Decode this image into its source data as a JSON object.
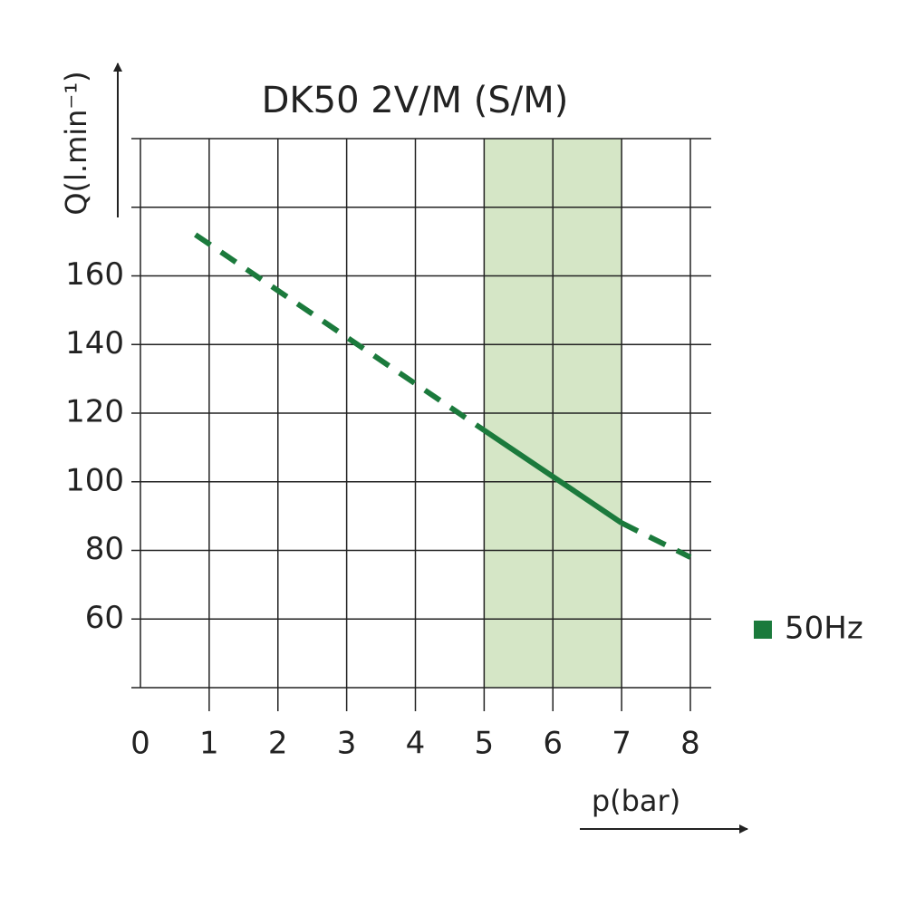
{
  "chart_data": {
    "type": "line",
    "title": "DK50 2V/M (S/M)",
    "x_label": "p(bar)",
    "y_label": "Q(l.min⁻¹)",
    "xlim": [
      0,
      8
    ],
    "xticks": [
      0,
      1,
      2,
      3,
      4,
      5,
      6,
      7,
      8
    ],
    "ylim": [
      40,
      200
    ],
    "yticks": [
      {
        "value": 40,
        "label": null
      },
      60,
      80,
      100,
      120,
      140,
      160,
      {
        "value": 180,
        "label": null
      },
      {
        "value": 200,
        "label": null
      }
    ],
    "grid": true,
    "highlight": {
      "xlim": [
        5,
        7
      ],
      "color": "#d5e6c6"
    },
    "series": [
      {
        "name": "50Hz",
        "color": "#1b7a3c",
        "x": [
          0.8,
          5,
          7,
          8
        ],
        "values": [
          172,
          115,
          88,
          78
        ],
        "segment_styles": [
          "dashed",
          "solid",
          "dashed"
        ]
      }
    ],
    "legend": "right"
  }
}
